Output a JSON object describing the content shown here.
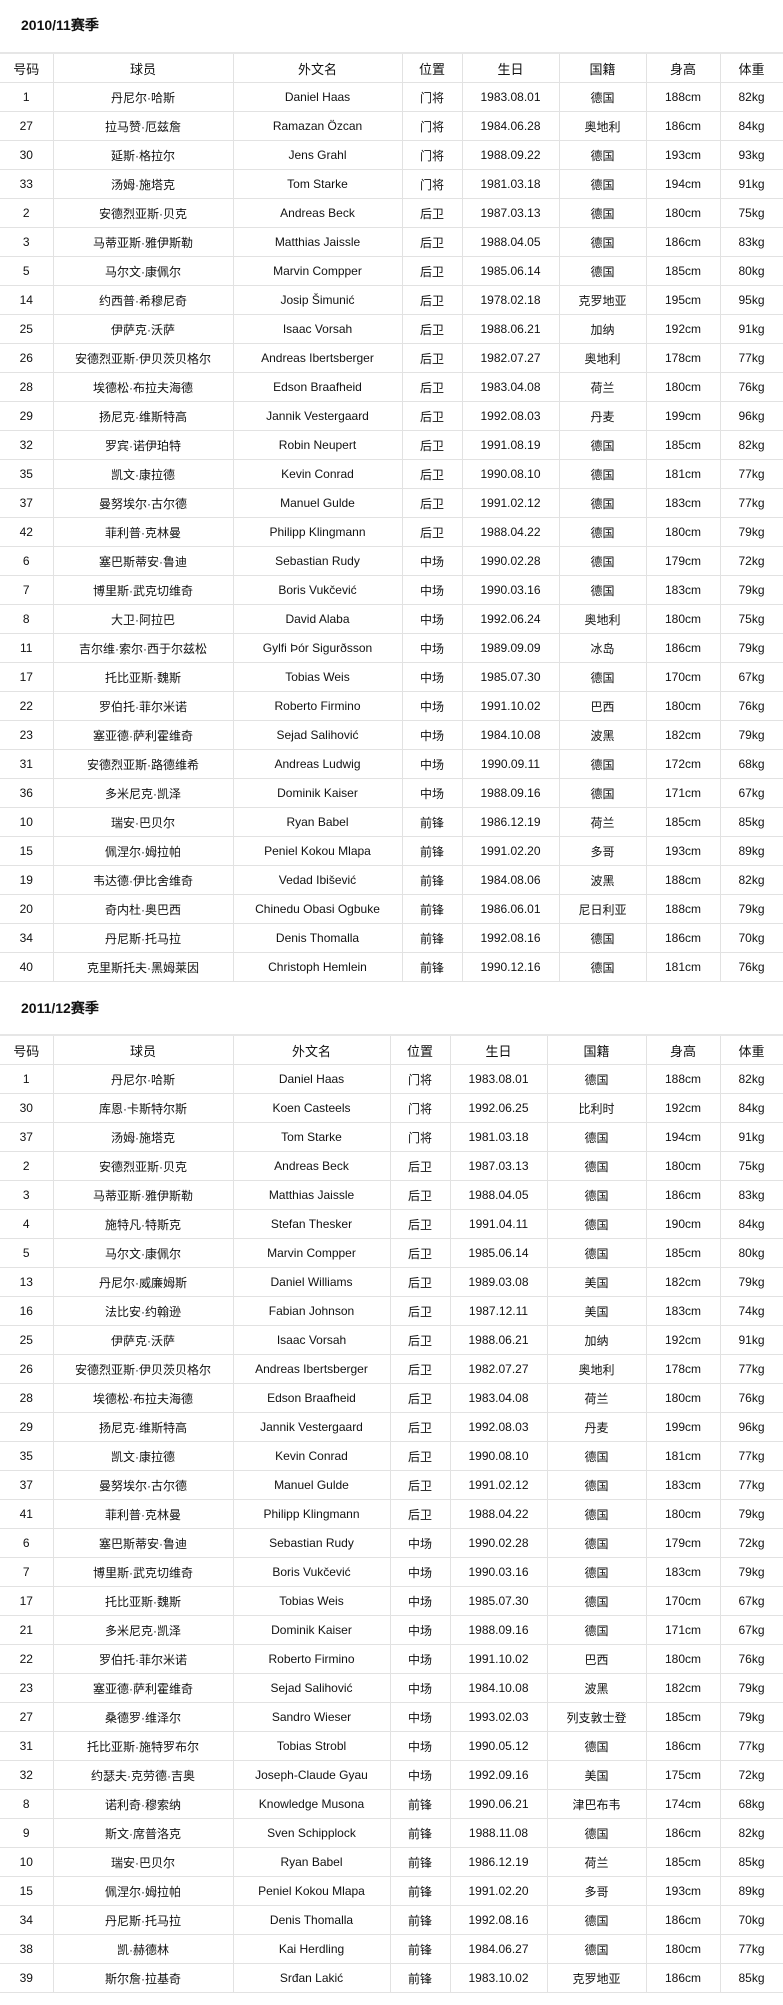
{
  "columns": [
    "号码",
    "球员",
    "外文名",
    "位置",
    "生日",
    "国籍",
    "身高",
    "体重"
  ],
  "seasons": [
    {
      "title": "2010/11赛季",
      "rows": [
        [
          "1",
          "丹尼尔·哈斯",
          "Daniel Haas",
          "门将",
          "1983.08.01",
          "德国",
          "188cm",
          "82kg"
        ],
        [
          "27",
          "拉马赞·厄兹詹",
          "Ramazan Özcan",
          "门将",
          "1984.06.28",
          "奥地利",
          "186cm",
          "84kg"
        ],
        [
          "30",
          "延斯·格拉尔",
          "Jens Grahl",
          "门将",
          "1988.09.22",
          "德国",
          "193cm",
          "93kg"
        ],
        [
          "33",
          "汤姆·施塔克",
          "Tom Starke",
          "门将",
          "1981.03.18",
          "德国",
          "194cm",
          "91kg"
        ],
        [
          "2",
          "安德烈亚斯·贝克",
          "Andreas Beck",
          "后卫",
          "1987.03.13",
          "德国",
          "180cm",
          "75kg"
        ],
        [
          "3",
          "马蒂亚斯·雅伊斯勒",
          "Matthias Jaissle",
          "后卫",
          "1988.04.05",
          "德国",
          "186cm",
          "83kg"
        ],
        [
          "5",
          "马尔文·康佩尔",
          "Marvin Compper",
          "后卫",
          "1985.06.14",
          "德国",
          "185cm",
          "80kg"
        ],
        [
          "14",
          "约西普·希穆尼奇",
          "Josip Šimunić",
          "后卫",
          "1978.02.18",
          "克罗地亚",
          "195cm",
          "95kg"
        ],
        [
          "25",
          "伊萨克·沃萨",
          "Isaac Vorsah",
          "后卫",
          "1988.06.21",
          "加纳",
          "192cm",
          "91kg"
        ],
        [
          "26",
          "安德烈亚斯·伊贝茨贝格尔",
          "Andreas Ibertsberger",
          "后卫",
          "1982.07.27",
          "奥地利",
          "178cm",
          "77kg"
        ],
        [
          "28",
          "埃德松·布拉夫海德",
          "Edson Braafheid",
          "后卫",
          "1983.04.08",
          "荷兰",
          "180cm",
          "76kg"
        ],
        [
          "29",
          "扬尼克·维斯特高",
          "Jannik Vestergaard",
          "后卫",
          "1992.08.03",
          "丹麦",
          "199cm",
          "96kg"
        ],
        [
          "32",
          "罗宾·诺伊珀特",
          "Robin Neupert",
          "后卫",
          "1991.08.19",
          "德国",
          "185cm",
          "82kg"
        ],
        [
          "35",
          "凯文·康拉德",
          "Kevin Conrad",
          "后卫",
          "1990.08.10",
          "德国",
          "181cm",
          "77kg"
        ],
        [
          "37",
          "曼努埃尔·古尔德",
          "Manuel Gulde",
          "后卫",
          "1991.02.12",
          "德国",
          "183cm",
          "77kg"
        ],
        [
          "42",
          "菲利普·克林曼",
          "Philipp Klingmann",
          "后卫",
          "1988.04.22",
          "德国",
          "180cm",
          "79kg"
        ],
        [
          "6",
          "塞巴斯蒂安·鲁迪",
          "Sebastian Rudy",
          "中场",
          "1990.02.28",
          "德国",
          "179cm",
          "72kg"
        ],
        [
          "7",
          "博里斯·武克切维奇",
          "Boris Vukčević",
          "中场",
          "1990.03.16",
          "德国",
          "183cm",
          "79kg"
        ],
        [
          "8",
          "大卫·阿拉巴",
          "David Alaba",
          "中场",
          "1992.06.24",
          "奥地利",
          "180cm",
          "75kg"
        ],
        [
          "11",
          "吉尔维·索尔·西于尔兹松",
          "Gylfi Þór Sigurðsson",
          "中场",
          "1989.09.09",
          "冰岛",
          "186cm",
          "79kg"
        ],
        [
          "17",
          "托比亚斯·魏斯",
          "Tobias Weis",
          "中场",
          "1985.07.30",
          "德国",
          "170cm",
          "67kg"
        ],
        [
          "22",
          "罗伯托·菲尔米诺",
          "Roberto Firmino",
          "中场",
          "1991.10.02",
          "巴西",
          "180cm",
          "76kg"
        ],
        [
          "23",
          "塞亚德·萨利霍维奇",
          "Sejad Salihović",
          "中场",
          "1984.10.08",
          "波黑",
          "182cm",
          "79kg"
        ],
        [
          "31",
          "安德烈亚斯·路德维希",
          "Andreas Ludwig",
          "中场",
          "1990.09.11",
          "德国",
          "172cm",
          "68kg"
        ],
        [
          "36",
          "多米尼克·凯泽",
          "Dominik Kaiser",
          "中场",
          "1988.09.16",
          "德国",
          "171cm",
          "67kg"
        ],
        [
          "10",
          "瑞安·巴贝尔",
          "Ryan Babel",
          "前锋",
          "1986.12.19",
          "荷兰",
          "185cm",
          "85kg"
        ],
        [
          "15",
          "佩涅尔·姆拉帕",
          "Peniel Kokou Mlapa",
          "前锋",
          "1991.02.20",
          "多哥",
          "193cm",
          "89kg"
        ],
        [
          "19",
          "韦达德·伊比舍维奇",
          "Vedad Ibišević",
          "前锋",
          "1984.08.06",
          "波黑",
          "188cm",
          "82kg"
        ],
        [
          "20",
          "奇内杜·奥巴西",
          "Chinedu Obasi Ogbuke",
          "前锋",
          "1986.06.01",
          "尼日利亚",
          "188cm",
          "79kg"
        ],
        [
          "34",
          "丹尼斯·托马拉",
          "Denis Thomalla",
          "前锋",
          "1992.08.16",
          "德国",
          "186cm",
          "70kg"
        ],
        [
          "40",
          "克里斯托夫·黑姆莱因",
          "Christoph Hemlein",
          "前锋",
          "1990.12.16",
          "德国",
          "181cm",
          "76kg"
        ]
      ]
    },
    {
      "title": "2011/12赛季",
      "rows": [
        [
          "1",
          "丹尼尔·哈斯",
          "Daniel Haas",
          "门将",
          "1983.08.01",
          "德国",
          "188cm",
          "82kg"
        ],
        [
          "30",
          "库恩·卡斯特尔斯",
          "Koen Casteels",
          "门将",
          "1992.06.25",
          "比利时",
          "192cm",
          "84kg"
        ],
        [
          "37",
          "汤姆·施塔克",
          "Tom Starke",
          "门将",
          "1981.03.18",
          "德国",
          "194cm",
          "91kg"
        ],
        [
          "2",
          "安德烈亚斯·贝克",
          "Andreas Beck",
          "后卫",
          "1987.03.13",
          "德国",
          "180cm",
          "75kg"
        ],
        [
          "3",
          "马蒂亚斯·雅伊斯勒",
          "Matthias Jaissle",
          "后卫",
          "1988.04.05",
          "德国",
          "186cm",
          "83kg"
        ],
        [
          "4",
          "施特凡·特斯克",
          "Stefan Thesker",
          "后卫",
          "1991.04.11",
          "德国",
          "190cm",
          "84kg"
        ],
        [
          "5",
          "马尔文·康佩尔",
          "Marvin Compper",
          "后卫",
          "1985.06.14",
          "德国",
          "185cm",
          "80kg"
        ],
        [
          "13",
          "丹尼尔·威廉姆斯",
          "Daniel Williams",
          "后卫",
          "1989.03.08",
          "美国",
          "182cm",
          "79kg"
        ],
        [
          "16",
          "法比安·约翰逊",
          "Fabian Johnson",
          "后卫",
          "1987.12.11",
          "美国",
          "183cm",
          "74kg"
        ],
        [
          "25",
          "伊萨克·沃萨",
          "Isaac Vorsah",
          "后卫",
          "1988.06.21",
          "加纳",
          "192cm",
          "91kg"
        ],
        [
          "26",
          "安德烈亚斯·伊贝茨贝格尔",
          "Andreas Ibertsberger",
          "后卫",
          "1982.07.27",
          "奥地利",
          "178cm",
          "77kg"
        ],
        [
          "28",
          "埃德松·布拉夫海德",
          "Edson Braafheid",
          "后卫",
          "1983.04.08",
          "荷兰",
          "180cm",
          "76kg"
        ],
        [
          "29",
          "扬尼克·维斯特高",
          "Jannik Vestergaard",
          "后卫",
          "1992.08.03",
          "丹麦",
          "199cm",
          "96kg"
        ],
        [
          "35",
          "凯文·康拉德",
          "Kevin Conrad",
          "后卫",
          "1990.08.10",
          "德国",
          "181cm",
          "77kg"
        ],
        [
          "37",
          "曼努埃尔·古尔德",
          "Manuel Gulde",
          "后卫",
          "1991.02.12",
          "德国",
          "183cm",
          "77kg"
        ],
        [
          "41",
          "菲利普·克林曼",
          "Philipp Klingmann",
          "后卫",
          "1988.04.22",
          "德国",
          "180cm",
          "79kg"
        ],
        [
          "6",
          "塞巴斯蒂安·鲁迪",
          "Sebastian Rudy",
          "中场",
          "1990.02.28",
          "德国",
          "179cm",
          "72kg"
        ],
        [
          "7",
          "博里斯·武克切维奇",
          "Boris Vukčević",
          "中场",
          "1990.03.16",
          "德国",
          "183cm",
          "79kg"
        ],
        [
          "17",
          "托比亚斯·魏斯",
          "Tobias Weis",
          "中场",
          "1985.07.30",
          "德国",
          "170cm",
          "67kg"
        ],
        [
          "21",
          "多米尼克·凯泽",
          "Dominik Kaiser",
          "中场",
          "1988.09.16",
          "德国",
          "171cm",
          "67kg"
        ],
        [
          "22",
          "罗伯托·菲尔米诺",
          "Roberto Firmino",
          "中场",
          "1991.10.02",
          "巴西",
          "180cm",
          "76kg"
        ],
        [
          "23",
          "塞亚德·萨利霍维奇",
          "Sejad Salihović",
          "中场",
          "1984.10.08",
          "波黑",
          "182cm",
          "79kg"
        ],
        [
          "27",
          "桑德罗·维泽尔",
          "Sandro Wieser",
          "中场",
          "1993.02.03",
          "列支敦士登",
          "185cm",
          "79kg"
        ],
        [
          "31",
          "托比亚斯·施特罗布尔",
          "Tobias Strobl",
          "中场",
          "1990.05.12",
          "德国",
          "186cm",
          "77kg"
        ],
        [
          "32",
          "约瑟夫·克劳德·吉奥",
          "Joseph-Claude Gyau",
          "中场",
          "1992.09.16",
          "美国",
          "175cm",
          "72kg"
        ],
        [
          "8",
          "诺利奇·穆索纳",
          "Knowledge Musona",
          "前锋",
          "1990.06.21",
          "津巴布韦",
          "174cm",
          "68kg"
        ],
        [
          "9",
          "斯文·席普洛克",
          "Sven Schipplock",
          "前锋",
          "1988.11.08",
          "德国",
          "186cm",
          "82kg"
        ],
        [
          "10",
          "瑞安·巴贝尔",
          "Ryan Babel",
          "前锋",
          "1986.12.19",
          "荷兰",
          "185cm",
          "85kg"
        ],
        [
          "15",
          "佩涅尔·姆拉帕",
          "Peniel Kokou Mlapa",
          "前锋",
          "1991.02.20",
          "多哥",
          "193cm",
          "89kg"
        ],
        [
          "34",
          "丹尼斯·托马拉",
          "Denis Thomalla",
          "前锋",
          "1992.08.16",
          "德国",
          "186cm",
          "70kg"
        ],
        [
          "38",
          "凯·赫德林",
          "Kai Herdling",
          "前锋",
          "1984.06.27",
          "德国",
          "180cm",
          "77kg"
        ],
        [
          "39",
          "斯尔詹·拉基奇",
          "Srđan Lakić",
          "前锋",
          "1983.10.02",
          "克罗地亚",
          "186cm",
          "85kg"
        ]
      ]
    }
  ]
}
